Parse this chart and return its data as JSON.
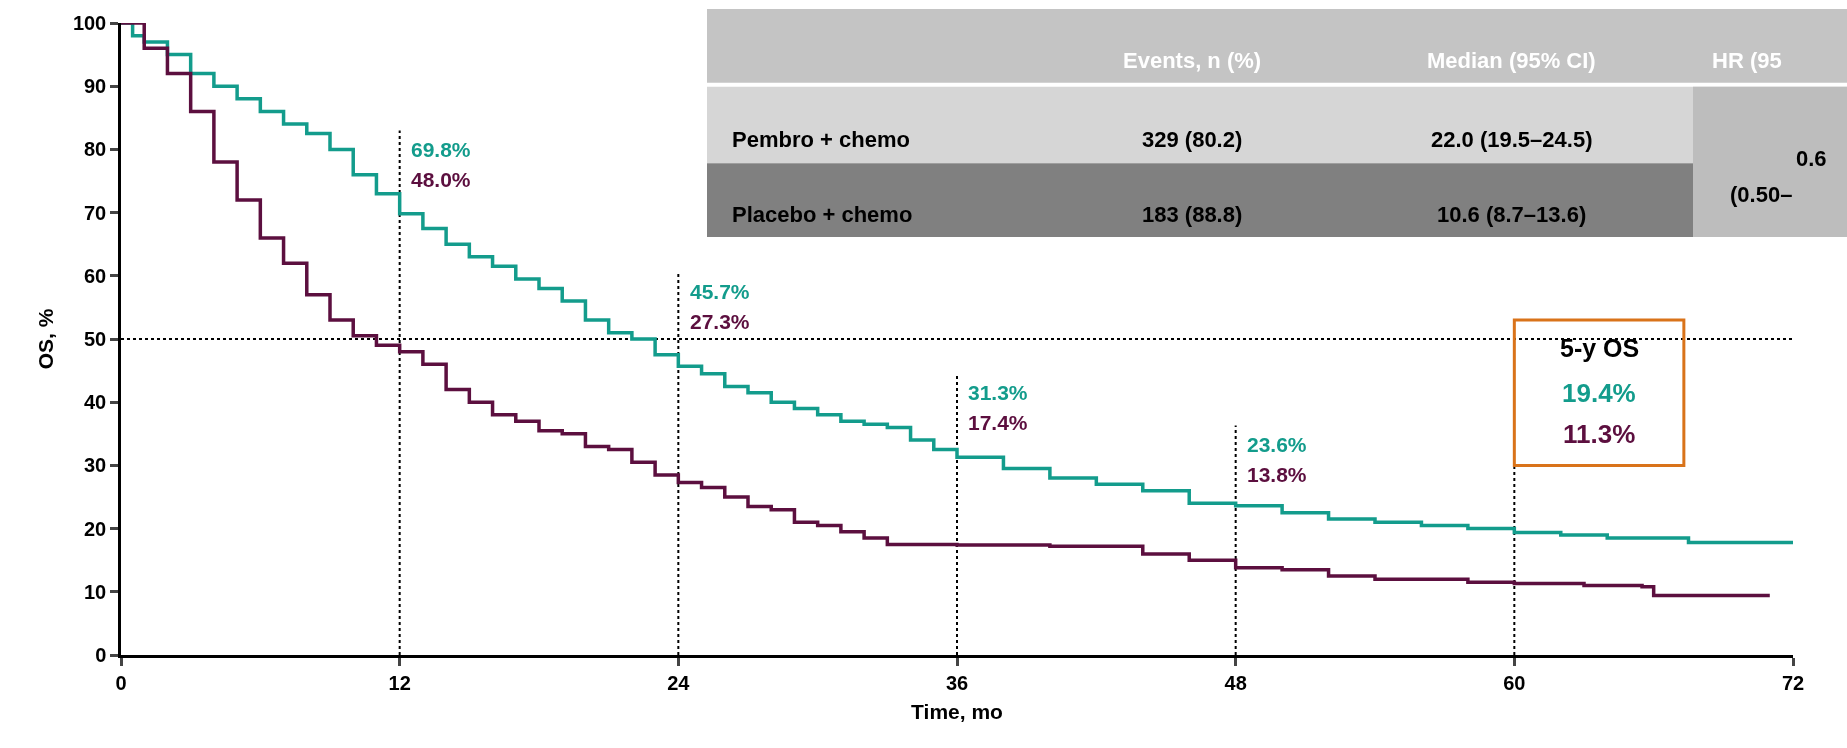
{
  "chart_data": [
    {
      "type": "step",
      "xlabel": "Time, mo",
      "ylabel": "OS, %",
      "xlim": [
        0,
        72
      ],
      "xticks": [
        0,
        12,
        24,
        36,
        48,
        60,
        72
      ],
      "ylim": [
        0,
        100
      ],
      "yticks": [
        0,
        10,
        20,
        30,
        40,
        50,
        60,
        70,
        80,
        90,
        100
      ],
      "grid": false,
      "line_style": "solid",
      "marker": "none",
      "series": [
        {
          "color": "#139c8c",
          "x": [
            0,
            0.5,
            1,
            2,
            3,
            4,
            5,
            6,
            7,
            8,
            9,
            10,
            11,
            12,
            13,
            14,
            15,
            16,
            17,
            18,
            19,
            20,
            21,
            22,
            23,
            24,
            25,
            26,
            27,
            28,
            29,
            30,
            31,
            32,
            33,
            34,
            35,
            36,
            38,
            40,
            42,
            44,
            46,
            48,
            50,
            52,
            54,
            56,
            58,
            60,
            62,
            64,
            67.5,
            72
          ],
          "values": [
            100,
            98,
            97,
            95,
            92,
            90,
            88,
            86,
            84,
            82.5,
            80,
            76,
            73,
            69.8,
            67.5,
            65,
            63,
            61.5,
            59.5,
            58,
            56,
            53,
            51,
            50,
            47.5,
            45.7,
            44.5,
            42.5,
            41.5,
            40,
            39,
            38,
            37,
            36.5,
            36,
            34,
            32.5,
            31.3,
            29.5,
            28,
            27,
            26,
            24,
            23.6,
            22.5,
            21.5,
            21,
            20.5,
            20,
            19.4,
            19,
            18.5,
            17.8,
            17.8
          ]
        },
        {
          "color": "#5c0f3f",
          "x": [
            0,
            1,
            2,
            3,
            4,
            5,
            6,
            7,
            8,
            9,
            10,
            11,
            12,
            13,
            14,
            15,
            16,
            17,
            18,
            19,
            20,
            21,
            22,
            23,
            24,
            25,
            26,
            27,
            28,
            29,
            30,
            31,
            32,
            33,
            36,
            40,
            44,
            46,
            48,
            50,
            52,
            54,
            58,
            60,
            63,
            65.5,
            66,
            71
          ],
          "values": [
            100,
            96,
            92,
            86,
            78,
            72,
            66,
            62,
            57,
            53,
            50.5,
            49,
            48,
            46,
            42,
            40,
            38,
            37,
            35.5,
            35,
            33,
            32.5,
            30.5,
            28.5,
            27.3,
            26.5,
            25,
            23.5,
            23,
            21,
            20.5,
            19.5,
            18.5,
            17.5,
            17.4,
            17.2,
            16,
            15,
            13.8,
            13.5,
            12.5,
            12,
            11.5,
            11.3,
            11,
            10.8,
            9.4,
            9.4
          ]
        }
      ],
      "ref_lines": [
        {
          "axis": "y",
          "value": 50,
          "color": "#000000",
          "line_style": "dotted"
        },
        {
          "axis": "x",
          "value": 12,
          "color": "#000000",
          "line_style": "dotted"
        },
        {
          "axis": "x",
          "value": 24,
          "color": "#000000",
          "line_style": "dotted"
        },
        {
          "axis": "x",
          "value": 36,
          "color": "#000000",
          "line_style": "dotted"
        },
        {
          "axis": "x",
          "value": 48,
          "color": "#000000",
          "line_style": "dotted"
        },
        {
          "axis": "x",
          "value": 60,
          "color": "#000000",
          "line_style": "dotted"
        }
      ],
      "annotations": [
        "69.8%",
        "48.0%",
        "45.7%",
        "27.3%",
        "31.3%",
        "17.4%",
        "23.6%",
        "13.8%",
        "5-y OS",
        "19.4%",
        "11.3%"
      ]
    },
    {
      "type": "other",
      "annotations": [
        "Events, n (%)",
        "Median (95% CI)",
        "HR (95",
        "Pembro + chemo",
        "329 (80.2)",
        "22.0 (19.5–24.5)",
        "Placebo + chemo",
        "183 (88.8)",
        "10.6 (8.7–13.6)",
        "0.6",
        "(0.50–"
      ]
    }
  ]
}
